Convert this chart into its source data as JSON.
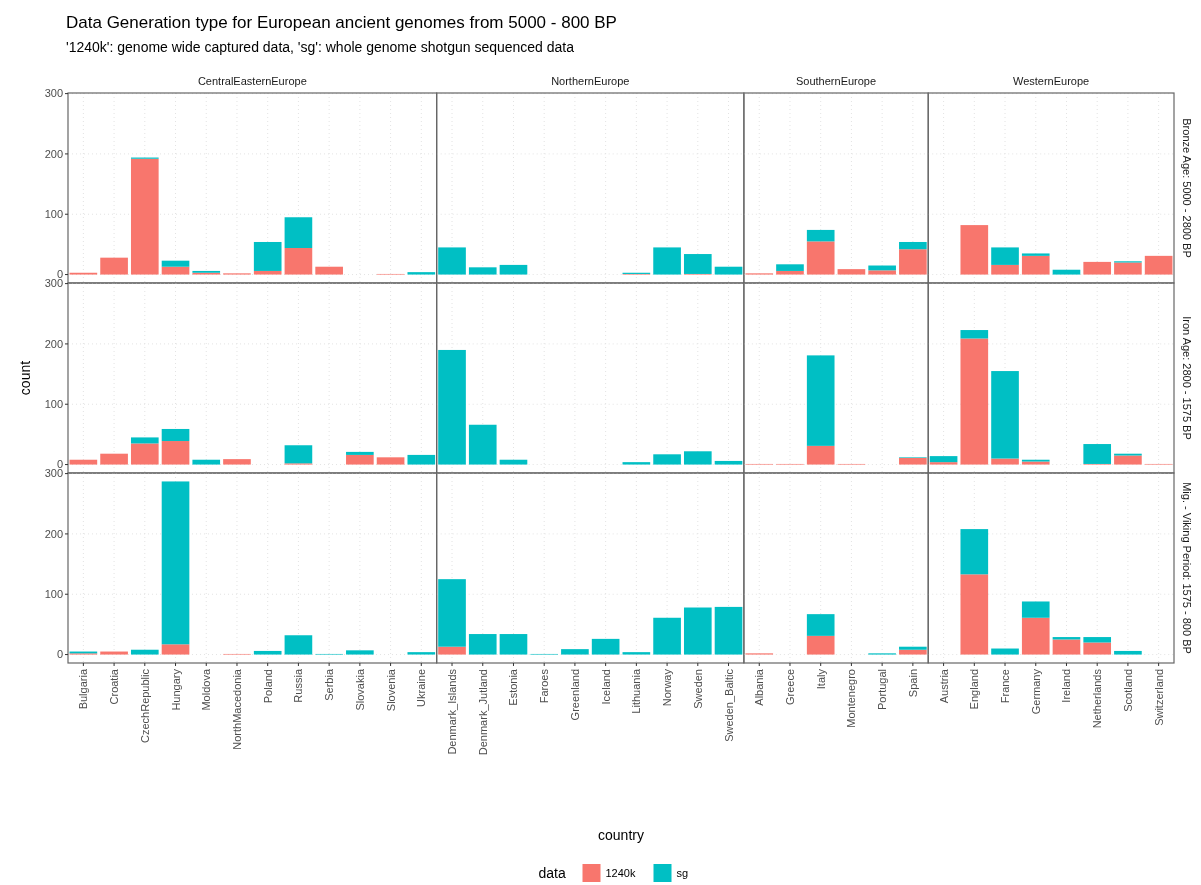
{
  "chart_data": [
    {
      "type": "bar",
      "stacked": true,
      "title": "CentralEasternEurope",
      "annotations": [
        "Data Generation type for European ancient genomes from 5000 - 800 BP",
        "'1240k': genome wide captured data, 'sg': whole genome shotgun sequenced data"
      ],
      "categories": [
        "Bulgaria",
        "Croatia",
        "CzechRepublic",
        "Hungary",
        "Moldova",
        "NorthMacedonia",
        "Poland",
        "Russia",
        "Serbia",
        "Slovakia",
        "Slovenia",
        "Ukraine"
      ],
      "series": [
        {
          "color": "#f8766d",
          "values": [
            3,
            28,
            192,
            13,
            3,
            2,
            6,
            44,
            13,
            0,
            1,
            0
          ]
        },
        {
          "color": "#00bfc4",
          "values": [
            0,
            0,
            2,
            10,
            3,
            0,
            48,
            51,
            0,
            0,
            0,
            4
          ]
        }
      ],
      "ylim": [
        -14,
        301
      ],
      "yticks": [
        0,
        100,
        200,
        300
      ],
      "grid": true,
      "tick_labels": "y"
    },
    {
      "type": "bar",
      "stacked": true,
      "title": "NorthernEurope",
      "categories": [
        "Denmark_Islands",
        "Denmark_Jutland",
        "Estonia",
        "Faroes",
        "Greenland",
        "Iceland",
        "Lithuania",
        "Norway",
        "Sweden",
        "Sweden_Baltic"
      ],
      "series": [
        {
          "color": "#f8766d",
          "values": [
            0,
            0,
            0,
            0,
            0,
            0,
            1,
            0,
            1,
            0
          ]
        },
        {
          "color": "#00bfc4",
          "values": [
            45,
            12,
            16,
            0,
            0,
            0,
            2,
            45,
            33,
            13
          ]
        }
      ],
      "ylim": [
        -14,
        301
      ],
      "yticks": [
        0,
        100,
        200,
        300
      ],
      "grid": true,
      "tick_labels": false
    },
    {
      "type": "bar",
      "stacked": true,
      "title": "SouthernEurope",
      "categories": [
        "Albania",
        "Greece",
        "Italy",
        "Montenegro",
        "Portugal",
        "Spain"
      ],
      "series": [
        {
          "color": "#f8766d",
          "values": [
            2,
            6,
            55,
            9,
            7,
            42
          ]
        },
        {
          "color": "#00bfc4",
          "values": [
            0,
            11,
            19,
            0,
            8,
            12
          ]
        }
      ],
      "ylim": [
        -14,
        301
      ],
      "yticks": [
        0,
        100,
        200,
        300
      ],
      "grid": true,
      "tick_labels": false
    },
    {
      "type": "bar",
      "stacked": true,
      "title": "WesternEurope",
      "y2label": "Bronze Age: 5000 - 2800 BP",
      "categories": [
        "Austria",
        "England",
        "France",
        "Germany",
        "Ireland",
        "Netherlands",
        "Scotland",
        "Switzerland"
      ],
      "series": [
        {
          "color": "#f8766d",
          "values": [
            0,
            82,
            16,
            31,
            0,
            21,
            20,
            31
          ]
        },
        {
          "color": "#00bfc4",
          "values": [
            0,
            0,
            29,
            4,
            8,
            0,
            2,
            0
          ]
        }
      ],
      "ylim": [
        -14,
        301
      ],
      "yticks": [
        0,
        100,
        200,
        300
      ],
      "grid": true,
      "tick_labels": false
    },
    {
      "type": "bar",
      "stacked": true,
      "ylabel": "count",
      "categories": [
        "Bulgaria",
        "Croatia",
        "CzechRepublic",
        "Hungary",
        "Moldova",
        "NorthMacedonia",
        "Poland",
        "Russia",
        "Serbia",
        "Slovakia",
        "Slovenia",
        "Ukraine"
      ],
      "series": [
        {
          "color": "#f8766d",
          "values": [
            8,
            18,
            35,
            39,
            0,
            9,
            0,
            2,
            0,
            16,
            12,
            0
          ]
        },
        {
          "color": "#00bfc4",
          "values": [
            0,
            0,
            10,
            20,
            8,
            0,
            0,
            30,
            0,
            5,
            0,
            16
          ]
        }
      ],
      "ylim": [
        -14,
        301
      ],
      "yticks": [
        0,
        100,
        200,
        300
      ],
      "grid": true,
      "tick_labels": "y"
    },
    {
      "type": "bar",
      "stacked": true,
      "categories": [
        "Denmark_Islands",
        "Denmark_Jutland",
        "Estonia",
        "Faroes",
        "Greenland",
        "Iceland",
        "Lithuania",
        "Norway",
        "Sweden",
        "Sweden_Baltic"
      ],
      "series": [
        {
          "color": "#f8766d",
          "values": [
            0,
            0,
            0,
            0,
            0,
            0,
            0,
            0,
            0,
            0
          ]
        },
        {
          "color": "#00bfc4",
          "values": [
            190,
            66,
            8,
            0,
            0,
            0,
            4,
            17,
            22,
            6
          ]
        }
      ],
      "ylim": [
        -14,
        301
      ],
      "yticks": [
        0,
        100,
        200,
        300
      ],
      "grid": true,
      "tick_labels": false
    },
    {
      "type": "bar",
      "stacked": true,
      "categories": [
        "Albania",
        "Greece",
        "Italy",
        "Montenegro",
        "Portugal",
        "Spain"
      ],
      "series": [
        {
          "color": "#f8766d",
          "values": [
            1,
            1,
            31,
            1,
            0,
            11
          ]
        },
        {
          "color": "#00bfc4",
          "values": [
            0,
            0,
            150,
            0,
            0,
            1
          ]
        }
      ],
      "ylim": [
        -14,
        301
      ],
      "yticks": [
        0,
        100,
        200,
        300
      ],
      "grid": true,
      "tick_labels": false
    },
    {
      "type": "bar",
      "stacked": true,
      "y2label": "Iron Age: 2800 - 1575 BP",
      "categories": [
        "Austria",
        "England",
        "France",
        "Germany",
        "Ireland",
        "Netherlands",
        "Scotland",
        "Switzerland"
      ],
      "series": [
        {
          "color": "#f8766d",
          "values": [
            4,
            209,
            10,
            5,
            0,
            1,
            15,
            1
          ]
        },
        {
          "color": "#00bfc4",
          "values": [
            10,
            14,
            145,
            3,
            0,
            33,
            3,
            0
          ]
        }
      ],
      "ylim": [
        -14,
        301
      ],
      "yticks": [
        0,
        100,
        200,
        300
      ],
      "grid": true,
      "tick_labels": false
    },
    {
      "type": "bar",
      "stacked": true,
      "categories": [
        "Bulgaria",
        "Croatia",
        "CzechRepublic",
        "Hungary",
        "Moldova",
        "NorthMacedonia",
        "Poland",
        "Russia",
        "Serbia",
        "Slovakia",
        "Slovenia",
        "Ukraine"
      ],
      "series": [
        {
          "color": "#f8766d",
          "values": [
            2,
            5,
            0,
            17,
            0,
            1,
            0,
            0,
            0,
            0,
            0,
            0
          ]
        },
        {
          "color": "#00bfc4",
          "values": [
            3,
            0,
            8,
            270,
            0,
            0,
            6,
            32,
            1,
            7,
            0,
            4
          ]
        }
      ],
      "ylim": [
        -14,
        301
      ],
      "yticks": [
        0,
        100,
        200,
        300
      ],
      "grid": true
    },
    {
      "type": "bar",
      "stacked": true,
      "xlabel": "country",
      "legend": "bottom",
      "legend_title": "data",
      "categories": [
        "Denmark_Islands",
        "Denmark_Jutland",
        "Estonia",
        "Faroes",
        "Greenland",
        "Iceland",
        "Lithuania",
        "Norway",
        "Sweden",
        "Sweden_Baltic"
      ],
      "series": [
        {
          "name": "1240k",
          "color": "#f8766d",
          "values": [
            13,
            0,
            0,
            0,
            0,
            0,
            0,
            0,
            0,
            0
          ]
        },
        {
          "name": "sg",
          "color": "#00bfc4",
          "values": [
            112,
            34,
            34,
            1,
            9,
            26,
            4,
            61,
            78,
            79
          ]
        }
      ],
      "ylim": [
        -14,
        301
      ],
      "yticks": [
        0,
        100,
        200,
        300
      ],
      "grid": true,
      "tick_labels": "x"
    },
    {
      "type": "bar",
      "stacked": true,
      "categories": [
        "Albania",
        "Greece",
        "Italy",
        "Montenegro",
        "Portugal",
        "Spain"
      ],
      "series": [
        {
          "color": "#f8766d",
          "values": [
            2,
            0,
            31,
            0,
            0,
            8
          ]
        },
        {
          "color": "#00bfc4",
          "values": [
            0,
            0,
            36,
            0,
            2,
            5
          ]
        }
      ],
      "ylim": [
        -14,
        301
      ],
      "yticks": [
        0,
        100,
        200,
        300
      ],
      "grid": true,
      "tick_labels": "x"
    },
    {
      "type": "bar",
      "stacked": true,
      "y2label": "Mig. - Viking Period: 1575 - 800 BP",
      "categories": [
        "Austria",
        "England",
        "France",
        "Germany",
        "Ireland",
        "Netherlands",
        "Scotland",
        "Switzerland"
      ],
      "series": [
        {
          "color": "#f8766d",
          "values": [
            0,
            133,
            0,
            61,
            25,
            20,
            0,
            0
          ]
        },
        {
          "color": "#00bfc4",
          "values": [
            0,
            75,
            10,
            27,
            4,
            9,
            6,
            0
          ]
        }
      ],
      "ylim": [
        -14,
        301
      ],
      "yticks": [
        0,
        100,
        200,
        300
      ],
      "grid": true,
      "tick_labels": "x"
    }
  ]
}
